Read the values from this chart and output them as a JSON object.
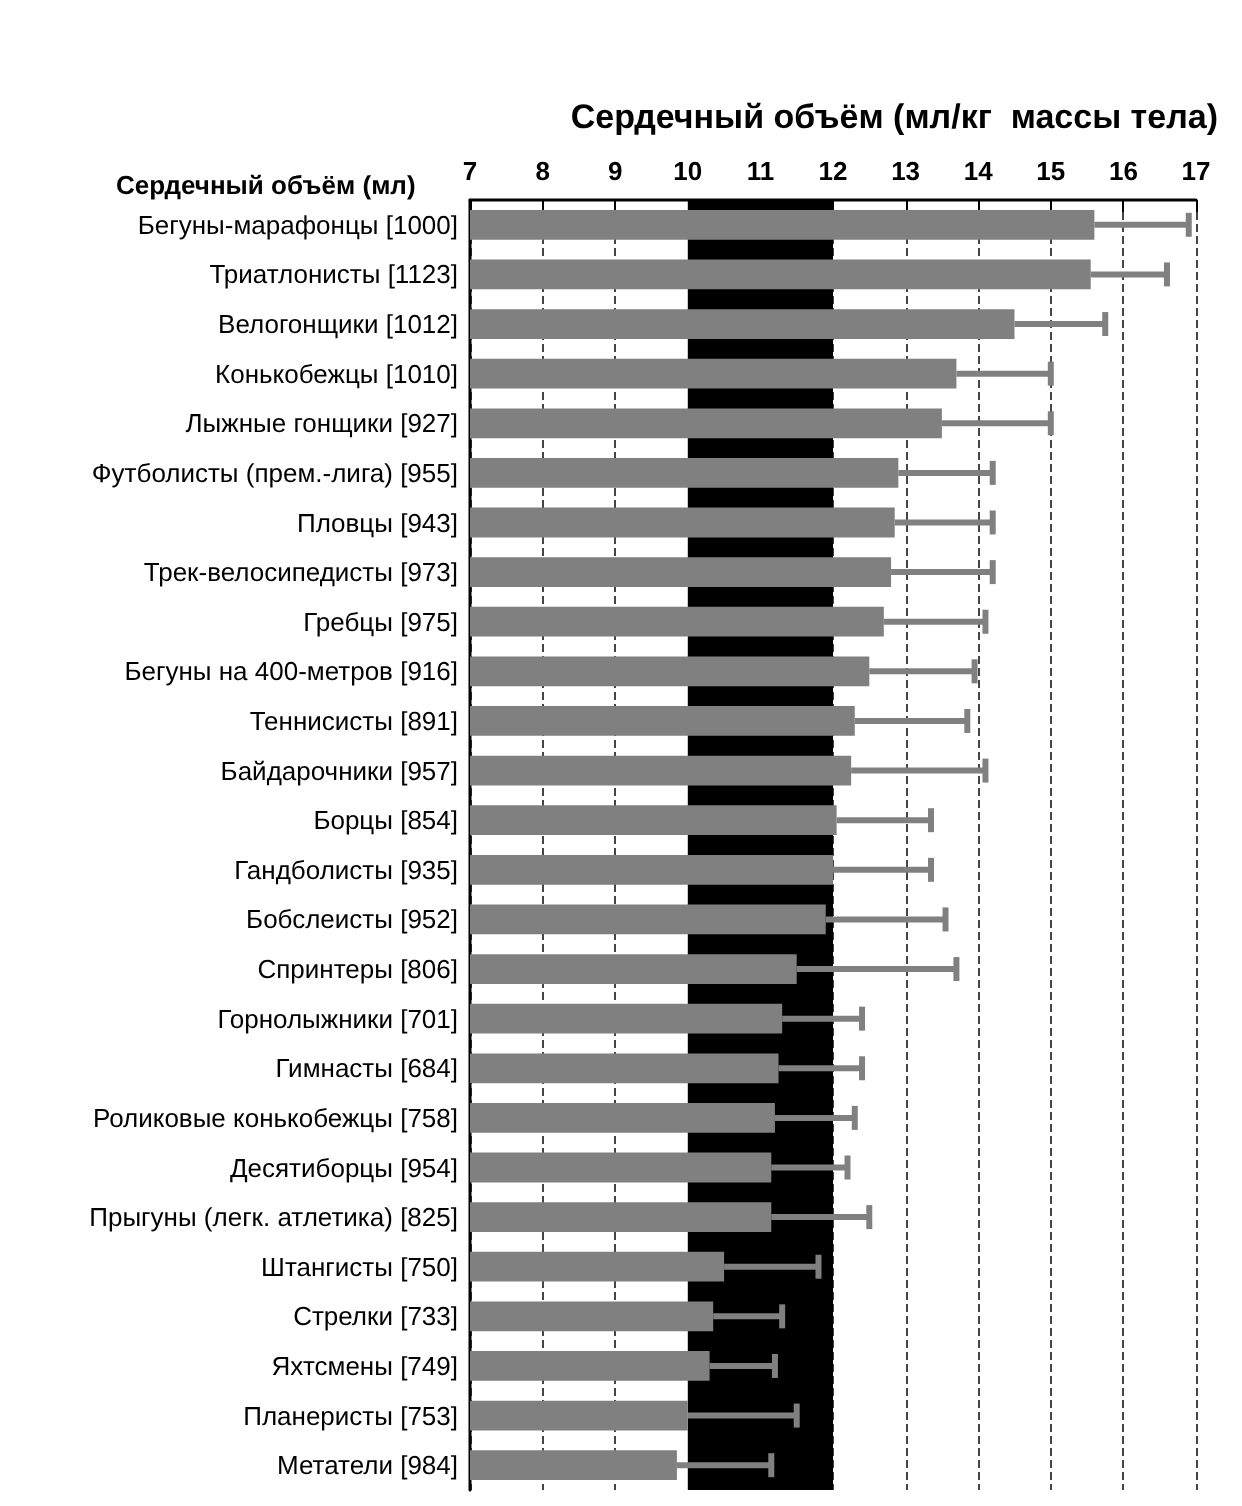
{
  "chart_data": {
    "type": "bar",
    "orientation": "horizontal",
    "xlabel": "Сердечный объём (мл/кг  массы тела)",
    "ylabel": "Сердечный объём (мл)",
    "categories": [
      "Бегуны-марафонцы [1000]",
      "Триатлонисты [1123]",
      "Велогонщики [1012]",
      "Конькобежцы [1010]",
      "Лыжные гонщики [927]",
      "Футболисты (прем.-лига) [955]",
      "Пловцы [943]",
      "Трек-велосипедисты [973]",
      "Гребцы [975]",
      "Бегуны на 400-метров [916]",
      "Теннисисты [891]",
      "Байдарочники [957]",
      "Борцы [854]",
      "Гандболисты [935]",
      "Бобслеисты [952]",
      "Спринтеры [806]",
      "Горнолыжники [701]",
      "Гимнасты [684]",
      "Роликовые конькобежцы [758]",
      "Десятиборцы [954]",
      "Прыгуны (легк. атлетика) [825]",
      "Штангисты [750]",
      "Стрелки [733]",
      "Яхтсмены [749]",
      "Планеристы [753]",
      "Метатели [984]"
    ],
    "series": [
      {
        "color": "#808080",
        "values": [
          15.6,
          15.55,
          14.5,
          13.7,
          13.5,
          12.9,
          12.85,
          12.8,
          12.7,
          12.5,
          12.3,
          12.25,
          12.05,
          12.0,
          11.9,
          11.5,
          11.3,
          11.25,
          11.2,
          11.15,
          11.15,
          10.5,
          10.35,
          10.3,
          10.0,
          9.85
        ],
        "errors": [
          [
            15.6,
            16.9
          ],
          [
            15.55,
            16.6
          ],
          [
            14.5,
            15.75
          ],
          [
            13.7,
            15.0
          ],
          [
            13.5,
            15.0
          ],
          [
            12.9,
            14.2
          ],
          [
            12.85,
            14.2
          ],
          [
            12.8,
            14.2
          ],
          [
            12.7,
            14.1
          ],
          [
            12.5,
            13.95
          ],
          [
            12.3,
            13.85
          ],
          [
            12.25,
            14.1
          ],
          [
            12.05,
            13.35
          ],
          [
            12.0,
            13.35
          ],
          [
            11.9,
            13.55
          ],
          [
            11.5,
            13.7
          ],
          [
            11.3,
            12.4
          ],
          [
            11.25,
            12.4
          ],
          [
            11.2,
            12.3
          ],
          [
            11.15,
            12.2
          ],
          [
            11.15,
            12.5
          ],
          [
            10.5,
            11.8
          ],
          [
            10.35,
            11.3
          ],
          [
            10.3,
            11.2
          ],
          [
            10.0,
            11.5
          ],
          [
            9.85,
            11.15
          ]
        ]
      }
    ],
    "xlim": [
      7,
      17
    ],
    "xticks": [
      7,
      8,
      9,
      10,
      11,
      12,
      13,
      14,
      15,
      16,
      17
    ],
    "grid": "x",
    "bands": [
      {
        "axis": "x",
        "from": 10,
        "to": 12,
        "color": "#000000"
      }
    ]
  }
}
